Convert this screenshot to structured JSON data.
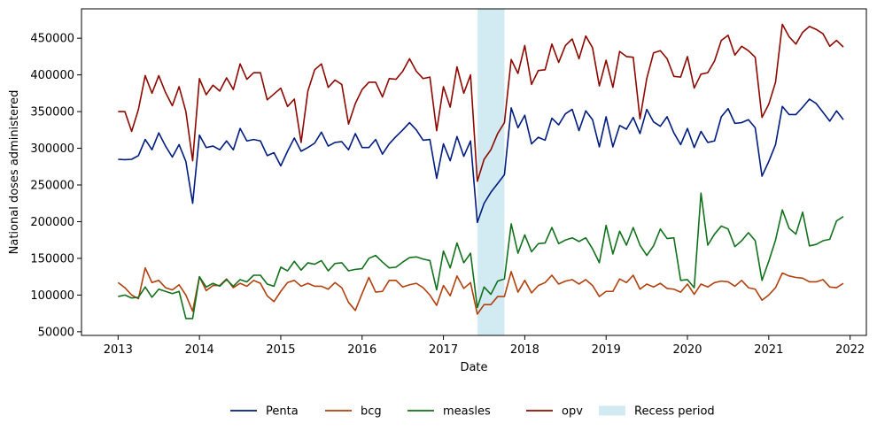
{
  "chart_data": {
    "type": "line",
    "xlabel": "Date",
    "ylabel": "National doses administered",
    "xlim": [
      2012.55,
      2022.2
    ],
    "ylim": [
      45000,
      490000
    ],
    "x_ticks": [
      2013,
      2014,
      2015,
      2016,
      2017,
      2018,
      2019,
      2020,
      2021,
      2022
    ],
    "x_tick_labels": [
      "2013",
      "2014",
      "2015",
      "2016",
      "2017",
      "2018",
      "2019",
      "2020",
      "2021",
      "2022"
    ],
    "y_ticks": [
      50000,
      100000,
      150000,
      200000,
      250000,
      300000,
      350000,
      400000,
      450000
    ],
    "y_tick_labels": [
      "50000",
      "100000",
      "150000",
      "200000",
      "250000",
      "300000",
      "350000",
      "400000",
      "450000"
    ],
    "grid": false,
    "legend_position": "bottom-center",
    "x_start": "2013-01",
    "x_step_months": 1,
    "recess": {
      "label": "Recess period",
      "start": 2017.42,
      "end": 2017.75,
      "color": "#add8e6"
    },
    "series": [
      {
        "name": "Penta",
        "color": "#001c7f",
        "values": [
          285000,
          284500,
          285000,
          290000,
          312000,
          298000,
          321000,
          303000,
          288000,
          305000,
          282000,
          225000,
          318000,
          301000,
          303000,
          298000,
          310000,
          298000,
          327000,
          310000,
          312000,
          310000,
          290000,
          294000,
          276000,
          296000,
          314000,
          296000,
          301000,
          307000,
          322000,
          303000,
          308000,
          309000,
          298000,
          320000,
          301000,
          301000,
          312000,
          292000,
          306000,
          316000,
          325000,
          335000,
          325000,
          311000,
          312000,
          259000,
          306000,
          283000,
          316000,
          289000,
          310000,
          199000,
          225000,
          240000,
          252000,
          264000,
          355000,
          328000,
          345000,
          306000,
          315000,
          311000,
          341000,
          332000,
          347000,
          353000,
          324000,
          351000,
          339000,
          302000,
          343000,
          302000,
          331000,
          326000,
          342000,
          320000,
          353000,
          336000,
          330000,
          343000,
          321000,
          305000,
          327000,
          301000,
          323000,
          308000,
          310000,
          343000,
          354000,
          334000,
          335000,
          339000,
          328000,
          262000,
          282000,
          305000,
          357000,
          346000,
          346000,
          356000,
          367000,
          361000,
          349000,
          337000,
          351000,
          339000
        ]
      },
      {
        "name": "bcg",
        "color": "#b1400d",
        "values": [
          117000,
          110000,
          100000,
          95000,
          137000,
          117000,
          120000,
          110000,
          107000,
          114000,
          100000,
          78000,
          125000,
          106000,
          113000,
          113000,
          122000,
          110000,
          116000,
          112000,
          120000,
          116000,
          99000,
          91000,
          105000,
          117000,
          120000,
          112000,
          116000,
          112000,
          112000,
          108000,
          117000,
          110000,
          90000,
          79000,
          102000,
          124000,
          104000,
          105000,
          120000,
          120000,
          111000,
          114000,
          116000,
          110000,
          100000,
          86000,
          113000,
          99000,
          126000,
          109000,
          117000,
          74000,
          87000,
          87000,
          98000,
          98000,
          132000,
          104000,
          120000,
          103000,
          113000,
          117000,
          127000,
          115000,
          119000,
          121000,
          115000,
          121000,
          113000,
          98000,
          105000,
          105000,
          122000,
          117000,
          127000,
          108000,
          115000,
          111000,
          116000,
          109000,
          108000,
          104000,
          115000,
          101000,
          115000,
          111000,
          117000,
          119000,
          118000,
          112000,
          120000,
          110000,
          108000,
          93000,
          100000,
          110000,
          130000,
          126000,
          124000,
          123000,
          118000,
          118000,
          121000,
          111000,
          110000,
          116000
        ]
      },
      {
        "name": "measles",
        "color": "#12711c",
        "values": [
          98000,
          100000,
          96000,
          97000,
          111000,
          97000,
          108000,
          105000,
          102000,
          105000,
          68000,
          68000,
          125000,
          111000,
          116000,
          112000,
          121000,
          112000,
          121000,
          118000,
          127000,
          127000,
          115000,
          112000,
          138000,
          133000,
          146000,
          134000,
          144000,
          142000,
          147000,
          133000,
          143000,
          144000,
          133000,
          135000,
          136000,
          150000,
          154000,
          145000,
          137000,
          138000,
          145000,
          151000,
          152000,
          149000,
          147000,
          107000,
          160000,
          137000,
          171000,
          144000,
          157000,
          83000,
          111000,
          101000,
          119000,
          122000,
          197000,
          157000,
          182000,
          159000,
          170000,
          171000,
          192000,
          170000,
          175000,
          178000,
          173000,
          178000,
          163000,
          144000,
          195000,
          156000,
          187000,
          168000,
          192000,
          168000,
          154000,
          167000,
          190000,
          177000,
          178000,
          120000,
          121000,
          110000,
          239000,
          168000,
          183000,
          194000,
          190000,
          166000,
          174000,
          185000,
          174000,
          120000,
          146000,
          175000,
          216000,
          191000,
          183000,
          213000,
          167000,
          169000,
          174000,
          176000,
          201000,
          207000
        ]
      },
      {
        "name": "opv",
        "color": "#8c0800",
        "values": [
          350000,
          350000,
          323000,
          353000,
          399000,
          375000,
          399000,
          376000,
          358000,
          384000,
          350000,
          283000,
          395000,
          373000,
          386000,
          378000,
          396000,
          380000,
          415000,
          394000,
          403000,
          403000,
          366000,
          374000,
          382000,
          357000,
          367000,
          308000,
          378000,
          407000,
          415000,
          383000,
          393000,
          387000,
          333000,
          361000,
          380000,
          390000,
          390000,
          370000,
          395000,
          394000,
          405000,
          422000,
          405000,
          395000,
          397000,
          324000,
          384000,
          356000,
          411000,
          375000,
          400000,
          255000,
          285000,
          298000,
          320000,
          335000,
          421000,
          402000,
          440000,
          387000,
          406000,
          407000,
          442000,
          417000,
          440000,
          449000,
          422000,
          453000,
          437000,
          385000,
          420000,
          383000,
          432000,
          425000,
          424000,
          340000,
          395000,
          430000,
          433000,
          422000,
          398000,
          397000,
          425000,
          382000,
          401000,
          403000,
          419000,
          447000,
          454000,
          427000,
          439000,
          433000,
          424000,
          342000,
          360000,
          390000,
          469000,
          452000,
          442000,
          458000,
          466000,
          462000,
          456000,
          439000,
          447000,
          438000
        ]
      }
    ]
  }
}
